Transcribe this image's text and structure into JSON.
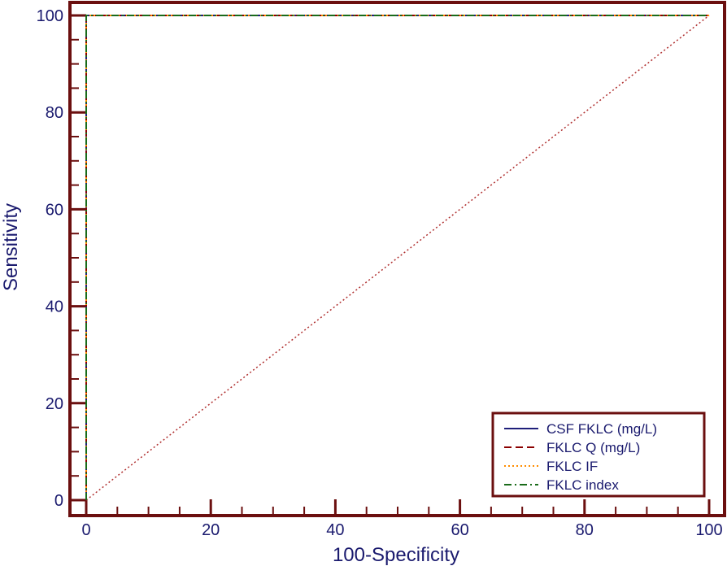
{
  "chart_data": {
    "type": "line",
    "xlabel": "100-Specificity",
    "ylabel": "Sensitivity",
    "xlim": [
      0,
      100
    ],
    "ylim": [
      0,
      100
    ],
    "x_ticks": [
      0,
      20,
      40,
      60,
      80,
      100
    ],
    "y_ticks": [
      0,
      20,
      40,
      60,
      80,
      100
    ],
    "grid": false,
    "legend_position": "bottom-right",
    "series": [
      {
        "name": "CSF FKLC (mg/L)",
        "x": [
          0,
          0,
          100
        ],
        "y": [
          0,
          100,
          100
        ],
        "color": "#1f1f7a",
        "dash": "solid"
      },
      {
        "name": "FKLC Q (mg/L)",
        "x": [
          0,
          0,
          100
        ],
        "y": [
          0,
          100,
          100
        ],
        "color": "#8b0000",
        "dash": "dashed"
      },
      {
        "name": "FKLC IF",
        "x": [
          0,
          0,
          100
        ],
        "y": [
          0,
          100,
          100
        ],
        "color": "#ff8c00",
        "dash": "dotted"
      },
      {
        "name": "FKLC index",
        "x": [
          0,
          0,
          100
        ],
        "y": [
          0,
          100,
          100
        ],
        "color": "#1a6b1a",
        "dash": "dashdot"
      }
    ],
    "reference_line": {
      "x": [
        0,
        100
      ],
      "y": [
        0,
        100
      ],
      "color": "#b03030",
      "dash": "dotted"
    }
  },
  "colors": {
    "frame": "#6b0f0f",
    "text": "#1a1a6e"
  }
}
